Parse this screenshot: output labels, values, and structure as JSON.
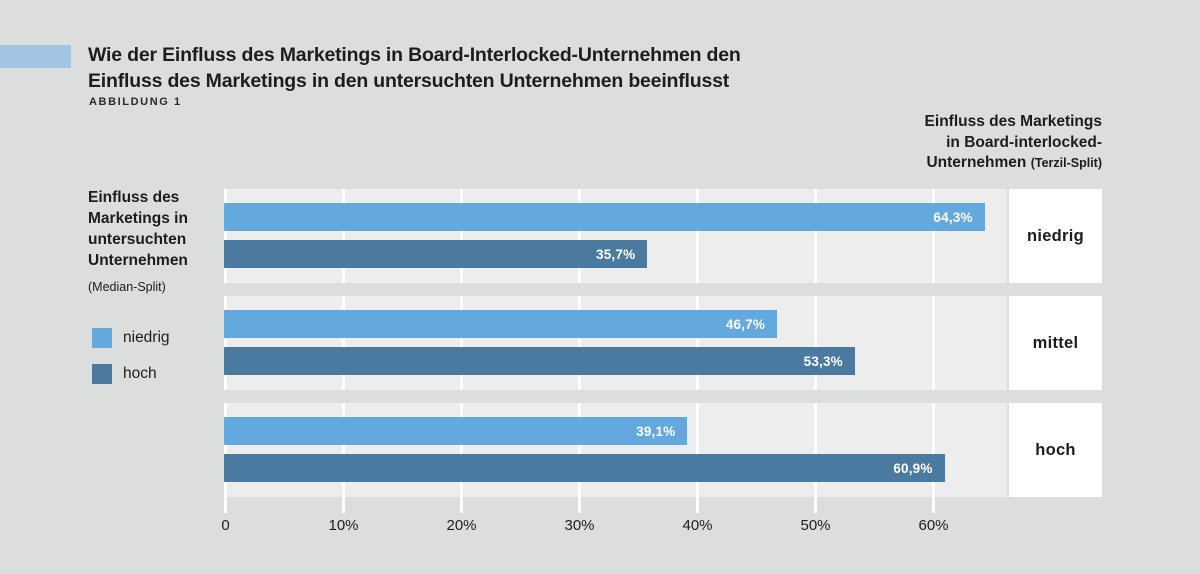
{
  "page": {
    "title_line1": "Wie der Einfluss des Marketings in Board-Interlocked-Unternehmen den",
    "title_line2": "Einfluss des Marketings in den untersuchten Unternehmen beeinflusst",
    "figure_label": "ABBILDUNG 1"
  },
  "right_header": {
    "line1": "Einfluss des Marketings",
    "line2": "in Board-interlocked-",
    "line3": "Unternehmen",
    "line3_suffix": "(Terzil-Split)"
  },
  "left_axis_label": {
    "lines": [
      "Einfluss des",
      "Marketings in",
      "untersuchten",
      "Unternehmen"
    ],
    "suffix": "(Median-Split)"
  },
  "legend": {
    "items": [
      {
        "label": "niedrig",
        "color": "#64a9de"
      },
      {
        "label": "hoch",
        "color": "#4a7aa0"
      }
    ]
  },
  "colors": {
    "page_bg": "#dcdddd",
    "plot_bg": "#ededee",
    "gridline": "#ffffff",
    "series_niedrig": "#64a9de",
    "series_hoch": "#4a7aa0",
    "accent_swatch": "#a2c5e3",
    "category_box_bg": "#ffffff",
    "bar_value_text": "#ffffff",
    "text": "#1d1d1b"
  },
  "chart_data": {
    "type": "bar",
    "orientation": "horizontal",
    "title": "Wie der Einfluss des Marketings in Board-Interlocked-Unternehmen den Einfluss des Marketings in den untersuchten Unternehmen beeinflusst",
    "categories": [
      "niedrig",
      "mittel",
      "hoch"
    ],
    "series": [
      {
        "name": "niedrig",
        "color": "#64a9de",
        "values": [
          64.3,
          46.7,
          39.1
        ],
        "labels": [
          "64,3%",
          "46,7%",
          "39,1%"
        ]
      },
      {
        "name": "hoch",
        "color": "#4a7aa0",
        "values": [
          35.7,
          53.3,
          60.9
        ],
        "labels": [
          "35,7%",
          "53,3%",
          "60,9%"
        ]
      }
    ],
    "x_ticks": [
      "0",
      "10%",
      "20%",
      "30%",
      "40%",
      "50%",
      "60%"
    ],
    "x_tick_values": [
      0,
      10,
      20,
      30,
      40,
      50,
      60
    ],
    "xlim": [
      0,
      66.3
    ],
    "grid": true,
    "legend_position": "left",
    "group_label_header": "Einfluss des Marketings in Board-interlocked-Unternehmen (Terzil-Split)",
    "value_axis_unit": "%"
  }
}
